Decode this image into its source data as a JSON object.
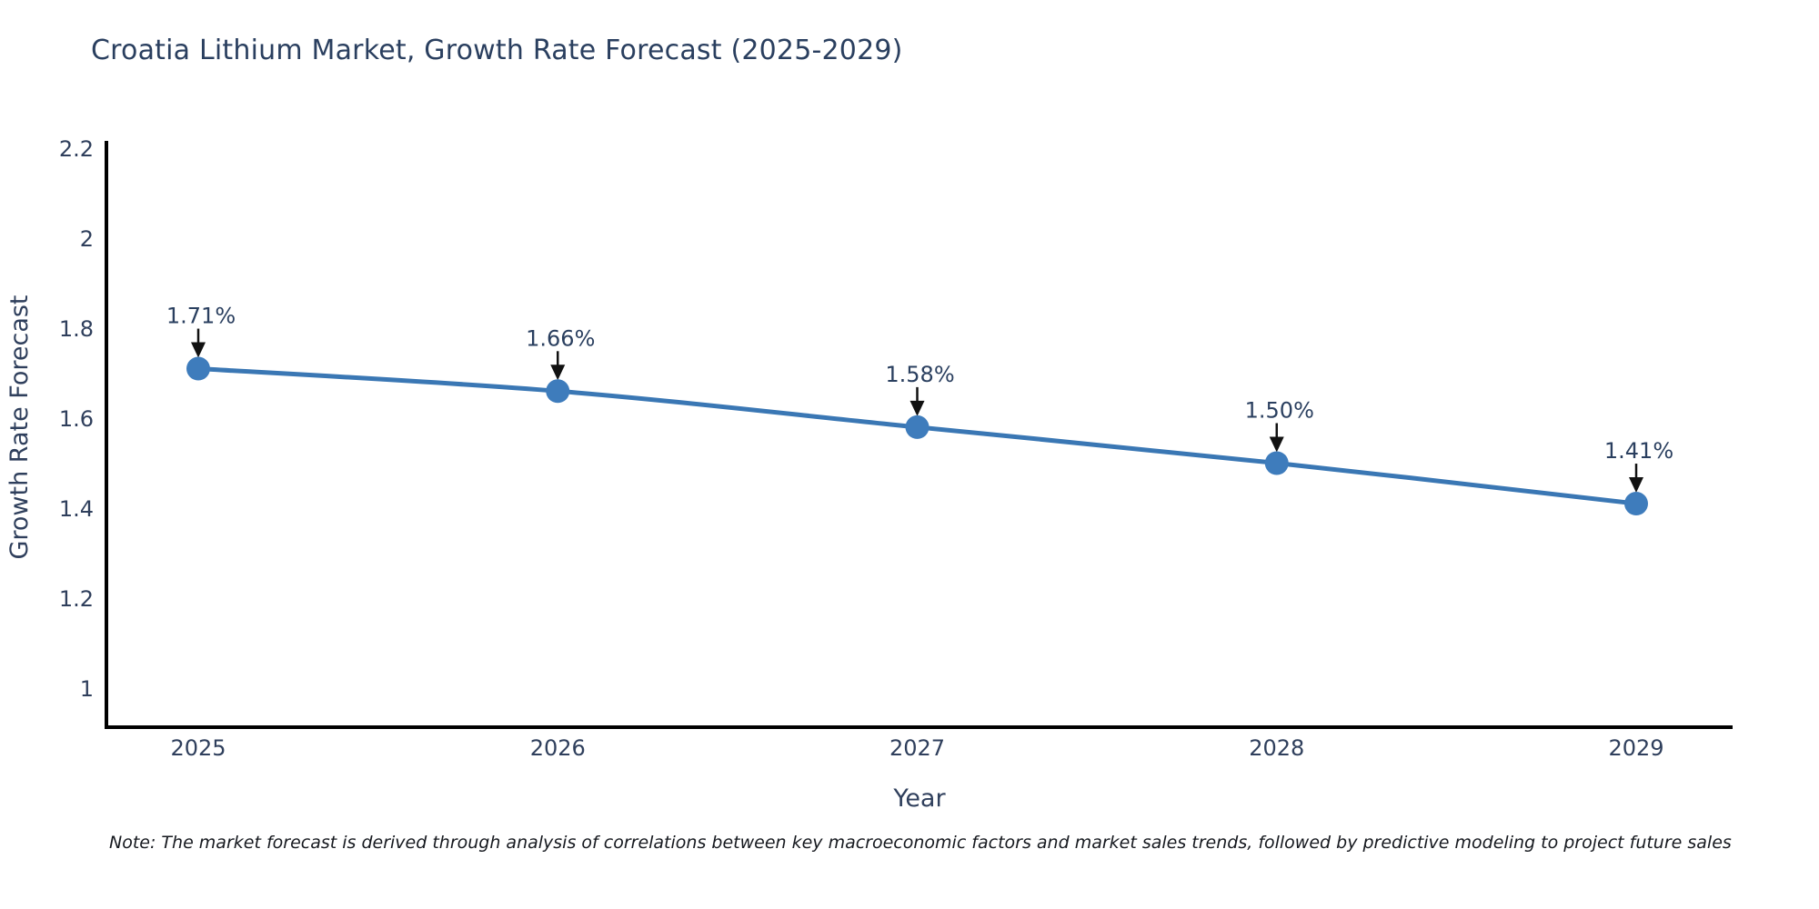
{
  "title": "Croatia Lithium Market, Growth Rate Forecast (2025-2029)",
  "note": "Note: The market forecast is derived through analysis of correlations between key macroeconomic factors and market sales trends, followed by predictive modeling to project future sales",
  "colors": {
    "title_text": "#2a3f5f",
    "tick_text": "#2f3f5c",
    "axis_line": "#000000",
    "series_line": "#3a77b4",
    "marker_fill": "#3e7cbc",
    "annotation_text": "#2a3f5f",
    "arrow": "#111111",
    "note_text": "#16191f",
    "background": "#ffffff"
  },
  "chart_data": {
    "type": "line",
    "title": "Croatia Lithium Market, Growth Rate Forecast (2025-2029)",
    "xlabel": "Year",
    "ylabel": "Growth Rate Forecast",
    "x": [
      2025,
      2026,
      2027,
      2028,
      2029
    ],
    "series": [
      {
        "name": "Growth Rate Forecast",
        "values": [
          1.71,
          1.66,
          1.58,
          1.5,
          1.41
        ],
        "point_labels": [
          "1.71%",
          "1.66%",
          "1.58%",
          "1.50%",
          "1.41%"
        ]
      }
    ],
    "xtick_labels": [
      "2025",
      "2026",
      "2027",
      "2028",
      "2029"
    ],
    "yticks": [
      {
        "v": 1,
        "label": "1"
      },
      {
        "v": 1.2,
        "label": "1.2"
      },
      {
        "v": 1.4,
        "label": "1.4"
      },
      {
        "v": 1.6,
        "label": "1.6"
      },
      {
        "v": 1.8,
        "label": "1.8"
      },
      {
        "v": 2,
        "label": "2"
      },
      {
        "v": 2.2,
        "label": "2.2"
      }
    ],
    "ylim": [
      0.91,
      2.3
    ],
    "grid": false,
    "legend": "none",
    "annotations": "arrow-down-to-point"
  }
}
